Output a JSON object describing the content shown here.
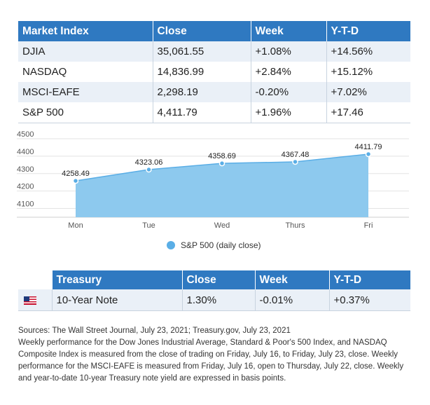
{
  "market_table": {
    "headers": [
      "Market Index",
      "Close",
      "Week",
      "Y-T-D"
    ],
    "rows": [
      [
        "DJIA",
        "35,061.55",
        "+1.08%",
        "+14.56%"
      ],
      [
        "NASDAQ",
        "14,836.99",
        "+2.84%",
        "+15.12%"
      ],
      [
        "MSCI-EAFE",
        "2,298.19",
        "-0.20%",
        "+7.02%"
      ],
      [
        "S&P 500",
        "4,411.79",
        "+1.96%",
        "+17.46"
      ]
    ]
  },
  "chart_data": {
    "type": "area",
    "categories": [
      "Mon",
      "Tue",
      "Wed",
      "Thurs",
      "Fri"
    ],
    "series": [
      {
        "name": "S&P 500 (daily close)",
        "values": [
          4258.49,
          4323.06,
          4358.69,
          4367.48,
          4411.79
        ],
        "labels": [
          "4258.49",
          "4323.06",
          "4358.69",
          "4367.48",
          "4411.79"
        ]
      }
    ],
    "yticks": [
      "4100",
      "4200",
      "4300",
      "4400",
      "4500"
    ],
    "ylim": [
      4050,
      4500
    ],
    "grid": true,
    "legend": "bottom",
    "colors": {
      "area": "#8dc9ee",
      "line": "#5aaee6",
      "marker": "#5aaee6"
    }
  },
  "treasury_table": {
    "headers": [
      "Treasury",
      "Close",
      "Week",
      "Y-T-D"
    ],
    "flag_icon": "us-flag-icon",
    "row": [
      "10-Year Note",
      "1.30%",
      "-0.01%",
      "+0.37%"
    ]
  },
  "notes": {
    "sources": "Sources: The Wall Street Journal, July 23, 2021; Treasury.gov, July 23, 2021",
    "body": "Weekly performance for the Dow Jones Industrial Average, Standard & Poor's 500 Index, and NASDAQ Composite Index is measured from the close of trading on Friday, July 16, to Friday, July 23, close. Weekly performance for the MSCI-EAFE is measured from Friday, July 16, open to Thursday, July 22, close. Weekly and year-to-date 10-year Treasury note yield are expressed in basis points."
  }
}
